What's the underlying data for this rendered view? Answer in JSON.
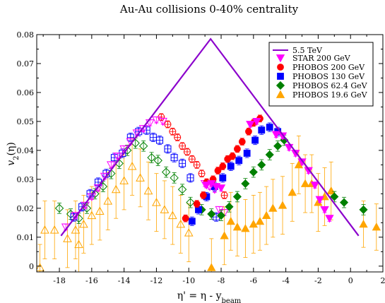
{
  "chart_data": {
    "type": "scatter",
    "title": "Au-Au collisions  0-40% centrality",
    "xlabel_main": "η' = η - y",
    "xlabel_sub": "beam",
    "ylabel_main": "v",
    "ylabel_sub": "2",
    "ylabel_tail": "(η)",
    "xlim": [
      -19.4,
      2
    ],
    "ylim": [
      -0.002,
      0.08
    ],
    "xticks": [
      -18,
      -16,
      -14,
      -12,
      -10,
      -8,
      -6,
      -4,
      -2,
      0,
      2
    ],
    "yticks": [
      0,
      0.01,
      0.02,
      0.03,
      0.04,
      0.05,
      0.06,
      0.07,
      0.08
    ],
    "xtick_labels": [
      "-18",
      "-16",
      "-14",
      "-12",
      "-10",
      "-8",
      "-6",
      "-4",
      "-2",
      "0",
      "2"
    ],
    "ytick_labels": [
      "0",
      "0.01",
      "0.02",
      "0.03",
      "0.04",
      "0.05",
      "0.06",
      "0.07",
      "0.08"
    ],
    "legend_position": "top-right",
    "line": {
      "name": "5.5 TeV",
      "color": "#8b00cc",
      "x": [
        -17.9,
        -8.65,
        0.5
      ],
      "y": [
        0.0105,
        0.0785,
        0.0105
      ]
    },
    "series": [
      {
        "name": "STAR 200 GeV",
        "color": "#ff00ff",
        "marker": "triangle-down",
        "filled_points": [
          [
            -4.6,
            0.0455,
            0.001
          ],
          [
            -4.2,
            0.045,
            0.001
          ],
          [
            -3.8,
            0.041,
            0.001
          ],
          [
            -3.4,
            0.039,
            0.001
          ],
          [
            -3.0,
            0.036,
            0.001
          ],
          [
            -2.6,
            0.033,
            0.001
          ],
          [
            -2.2,
            0.028,
            0.001
          ],
          [
            -1.9,
            0.023,
            0.001
          ],
          [
            -1.6,
            0.0195,
            0.001
          ],
          [
            -1.3,
            0.0165,
            0.001
          ],
          [
            -8.9,
            0.028,
            0.001
          ],
          [
            -8.6,
            0.0285,
            0.001
          ],
          [
            -8.3,
            0.0275,
            0.001
          ],
          [
            -8.0,
            0.027,
            0.001
          ],
          [
            -6.2,
            0.049,
            0.001
          ],
          [
            -5.8,
            0.05,
            0.001
          ]
        ],
        "open_points": [
          [
            -12.4,
            0.0495,
            0.001
          ],
          [
            -12.0,
            0.0505,
            0.001
          ],
          [
            -11.6,
            0.05,
            0.001
          ],
          [
            -12.8,
            0.0475,
            0.001
          ],
          [
            -13.2,
            0.046,
            0.001
          ],
          [
            -13.6,
            0.043,
            0.001
          ],
          [
            -14.0,
            0.0405,
            0.001
          ],
          [
            -14.4,
            0.038,
            0.001
          ],
          [
            -14.8,
            0.035,
            0.001
          ],
          [
            -15.2,
            0.031,
            0.001
          ],
          [
            -15.6,
            0.027,
            0.001
          ],
          [
            -16.0,
            0.024,
            0.001
          ],
          [
            -16.4,
            0.021,
            0.001
          ],
          [
            -17.0,
            0.0175,
            0.001
          ],
          [
            -17.6,
            0.0135,
            0.001
          ],
          [
            -9.0,
            0.0285,
            0.001
          ],
          [
            -8.7,
            0.0275,
            0.001
          ],
          [
            -8.4,
            0.0265,
            0.001
          ],
          [
            -8.1,
            0.0195,
            0.001
          ],
          [
            -7.8,
            0.0185,
            0.001
          ]
        ]
      },
      {
        "name": "PHOBOS 200 GeV",
        "color": "#ff0000",
        "marker": "circle",
        "filled_points": [
          [
            -5.6,
            0.051,
            0.0012
          ],
          [
            -6.0,
            0.0495,
            0.0012
          ],
          [
            -6.3,
            0.0465,
            0.0012
          ],
          [
            -6.7,
            0.043,
            0.0012
          ],
          [
            -7.0,
            0.0405,
            0.0012
          ],
          [
            -7.3,
            0.038,
            0.0012
          ],
          [
            -7.6,
            0.037,
            0.0012
          ],
          [
            -7.9,
            0.0345,
            0.0012
          ],
          [
            -8.2,
            0.033,
            0.0012
          ],
          [
            -8.5,
            0.03,
            0.0012
          ],
          [
            -8.9,
            0.029,
            0.0012
          ],
          [
            -9.1,
            0.0245,
            0.0012
          ],
          [
            -9.5,
            0.0215,
            0.0012
          ],
          [
            -10.2,
            0.0165,
            0.0012
          ]
        ],
        "open_points": [
          [
            -11.7,
            0.0515,
            0.0012
          ],
          [
            -11.3,
            0.049,
            0.0012
          ],
          [
            -11.0,
            0.0465,
            0.0012
          ],
          [
            -10.7,
            0.0445,
            0.0012
          ],
          [
            -10.4,
            0.0415,
            0.0012
          ],
          [
            -10.1,
            0.0395,
            0.0012
          ],
          [
            -9.8,
            0.037,
            0.0012
          ],
          [
            -9.5,
            0.035,
            0.0012
          ],
          [
            -9.2,
            0.032,
            0.0012
          ],
          [
            -7.8,
            0.0245,
            0.0012
          ]
        ]
      },
      {
        "name": "PHOBOS 130 GeV",
        "color": "#0000ff",
        "marker": "square",
        "filled_points": [
          [
            -5.0,
            0.048,
            0.0015
          ],
          [
            -4.5,
            0.0465,
            0.0015
          ],
          [
            -5.5,
            0.047,
            0.0015
          ],
          [
            -5.9,
            0.0435,
            0.0015
          ],
          [
            -6.4,
            0.039,
            0.0015
          ],
          [
            -6.9,
            0.0365,
            0.0015
          ],
          [
            -7.4,
            0.0345,
            0.0015
          ],
          [
            -7.9,
            0.0305,
            0.0015
          ],
          [
            -8.4,
            0.0275,
            0.0015
          ],
          [
            -8.9,
            0.024,
            0.0015
          ],
          [
            -9.4,
            0.0195,
            0.0015
          ],
          [
            -9.8,
            0.0155,
            0.0015
          ]
        ],
        "open_points": [
          [
            -12.6,
            0.047,
            0.0015
          ],
          [
            -12.2,
            0.0445,
            0.0015
          ],
          [
            -11.8,
            0.0435,
            0.0015
          ],
          [
            -11.3,
            0.0405,
            0.0015
          ],
          [
            -10.9,
            0.0375,
            0.0015
          ],
          [
            -10.4,
            0.0355,
            0.0015
          ],
          [
            -9.9,
            0.0305,
            0.0015
          ],
          [
            -13.1,
            0.0465,
            0.0015
          ],
          [
            -13.6,
            0.0445,
            0.0015
          ],
          [
            -14.1,
            0.039,
            0.0015
          ],
          [
            -14.6,
            0.0375,
            0.0015
          ],
          [
            -15.1,
            0.032,
            0.0015
          ],
          [
            -15.6,
            0.029,
            0.0015
          ],
          [
            -16.1,
            0.025,
            0.0015
          ],
          [
            -16.6,
            0.0205,
            0.0015
          ],
          [
            -17.1,
            0.017,
            0.0015
          ],
          [
            -8.3,
            0.017,
            0.0015
          ]
        ]
      },
      {
        "name": "PHOBOS 62.4 GeV",
        "color": "#008000",
        "marker": "diamond",
        "filled_points": [
          [
            -4.1,
            0.0435,
            0.0018
          ],
          [
            -4.5,
            0.0415,
            0.0018
          ],
          [
            -5.0,
            0.0385,
            0.0018
          ],
          [
            -5.5,
            0.035,
            0.0018
          ],
          [
            -6.0,
            0.0325,
            0.0018
          ],
          [
            -6.5,
            0.0285,
            0.0018
          ],
          [
            -7.0,
            0.024,
            0.0018
          ],
          [
            -7.5,
            0.0205,
            0.0018
          ],
          [
            -8.0,
            0.0175,
            0.0018
          ],
          [
            -8.6,
            0.018,
            0.0018
          ],
          [
            -9.2,
            0.0195,
            0.0018
          ],
          [
            -0.4,
            0.022,
            0.0018
          ],
          [
            0.8,
            0.0195,
            0.0018
          ],
          [
            -1.0,
            0.024,
            0.0018
          ]
        ],
        "open_points": [
          [
            -13.3,
            0.0425,
            0.0018
          ],
          [
            -12.8,
            0.0415,
            0.0018
          ],
          [
            -12.3,
            0.0375,
            0.0018
          ],
          [
            -11.9,
            0.0365,
            0.0018
          ],
          [
            -11.4,
            0.0325,
            0.0018
          ],
          [
            -10.9,
            0.0305,
            0.0018
          ],
          [
            -10.4,
            0.0265,
            0.0018
          ],
          [
            -9.9,
            0.022,
            0.0018
          ],
          [
            -13.8,
            0.04,
            0.0018
          ],
          [
            -14.3,
            0.0355,
            0.0018
          ],
          [
            -14.8,
            0.032,
            0.0018
          ],
          [
            -15.3,
            0.0275,
            0.0018
          ],
          [
            -15.8,
            0.025,
            0.0018
          ],
          [
            -16.3,
            0.02,
            0.0018
          ],
          [
            -16.8,
            0.0165,
            0.0018
          ],
          [
            -18.0,
            0.02,
            0.0018
          ],
          [
            -17.3,
            0.018,
            0.0018
          ]
        ]
      },
      {
        "name": "PHOBOS 19.6 GeV",
        "color": "#ffa500",
        "marker": "triangle-up",
        "filled_points": [
          [
            -3.2,
            0.035,
            0.01
          ],
          [
            -2.8,
            0.0285,
            0.01
          ],
          [
            -2.4,
            0.0285,
            0.01
          ],
          [
            -2.0,
            0.022,
            0.01
          ],
          [
            -1.6,
            0.024,
            0.01
          ],
          [
            -1.2,
            0.026,
            0.01
          ],
          [
            -3.6,
            0.0255,
            0.01
          ],
          [
            -4.2,
            0.021,
            0.01
          ],
          [
            -4.8,
            0.02,
            0.01
          ],
          [
            -5.2,
            0.0175,
            0.01
          ],
          [
            -5.6,
            0.0155,
            0.01
          ],
          [
            -6.0,
            0.0145,
            0.01
          ],
          [
            -6.5,
            0.013,
            0.01
          ],
          [
            -7.0,
            0.0135,
            0.01
          ],
          [
            -7.4,
            0.0155,
            0.01
          ],
          [
            -7.8,
            0.0105,
            0.01
          ],
          [
            -8.6,
            -0.0005,
            0.01
          ],
          [
            0.8,
            0.0145,
            0.008
          ],
          [
            1.6,
            0.0135,
            0.008
          ]
        ],
        "open_points": [
          [
            -13.5,
            0.0345,
            0.01
          ],
          [
            -13.0,
            0.0305,
            0.01
          ],
          [
            -12.5,
            0.026,
            0.01
          ],
          [
            -12.0,
            0.022,
            0.01
          ],
          [
            -11.5,
            0.0195,
            0.01
          ],
          [
            -11.0,
            0.0175,
            0.01
          ],
          [
            -10.5,
            0.0145,
            0.01
          ],
          [
            -10.0,
            0.0115,
            0.01
          ],
          [
            -14.0,
            0.0295,
            0.01
          ],
          [
            -14.5,
            0.0265,
            0.01
          ],
          [
            -15.0,
            0.0225,
            0.01
          ],
          [
            -15.5,
            0.019,
            0.01
          ],
          [
            -16.0,
            0.0175,
            0.01
          ],
          [
            -16.5,
            0.0145,
            0.01
          ],
          [
            -17.0,
            0.0125,
            0.01
          ],
          [
            -17.5,
            0.0095,
            0.01
          ],
          [
            -18.3,
            0.0125,
            0.01
          ],
          [
            -18.9,
            0.0125,
            0.01
          ],
          [
            -16.8,
            0.0075,
            0.01
          ],
          [
            -19.2,
            -0.0005,
            0.008
          ]
        ]
      }
    ]
  }
}
